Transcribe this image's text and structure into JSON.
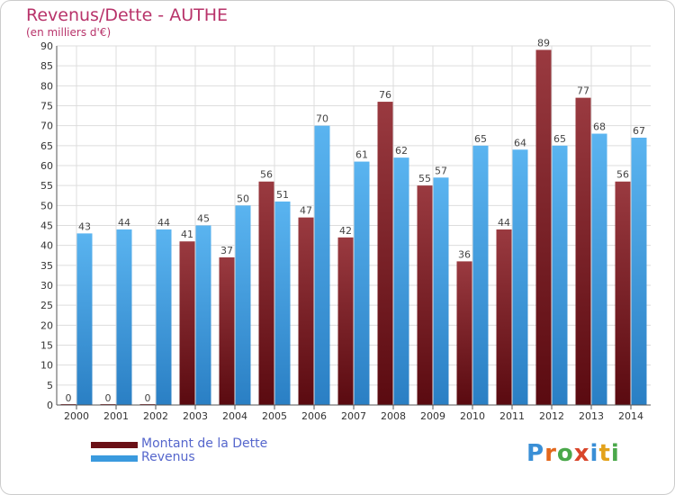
{
  "chart_data": {
    "type": "bar",
    "title": "Revenus/Dette - AUTHE",
    "subtitle": "(en milliers d'€)",
    "categories": [
      "2000",
      "2001",
      "2002",
      "2003",
      "2004",
      "2005",
      "2006",
      "2007",
      "2008",
      "2009",
      "2010",
      "2011",
      "2012",
      "2013",
      "2014"
    ],
    "series": [
      {
        "name": "Montant de la Dette",
        "color": "#7a1e22",
        "values": [
          0,
          0,
          0,
          41,
          37,
          56,
          47,
          42,
          76,
          55,
          36,
          44,
          89,
          77,
          56
        ]
      },
      {
        "name": "Revenus",
        "color": "#3a9ade",
        "values": [
          43,
          44,
          44,
          45,
          50,
          51,
          70,
          61,
          62,
          57,
          65,
          64,
          65,
          68,
          67
        ]
      }
    ],
    "ylim": [
      0,
      90
    ],
    "ytick_step": 5,
    "grid": true,
    "legend_position": "bottom-left"
  },
  "logo": {
    "text": "Proxiti",
    "letter_colors": [
      "#3a8fd6",
      "#e3671b",
      "#4aa84a",
      "#d9452a",
      "#3a8fd6",
      "#e3a21b",
      "#4aa84a"
    ]
  },
  "colors": {
    "title": "#b8336a",
    "legend_text": "#5566cc",
    "axis": "#555555"
  }
}
